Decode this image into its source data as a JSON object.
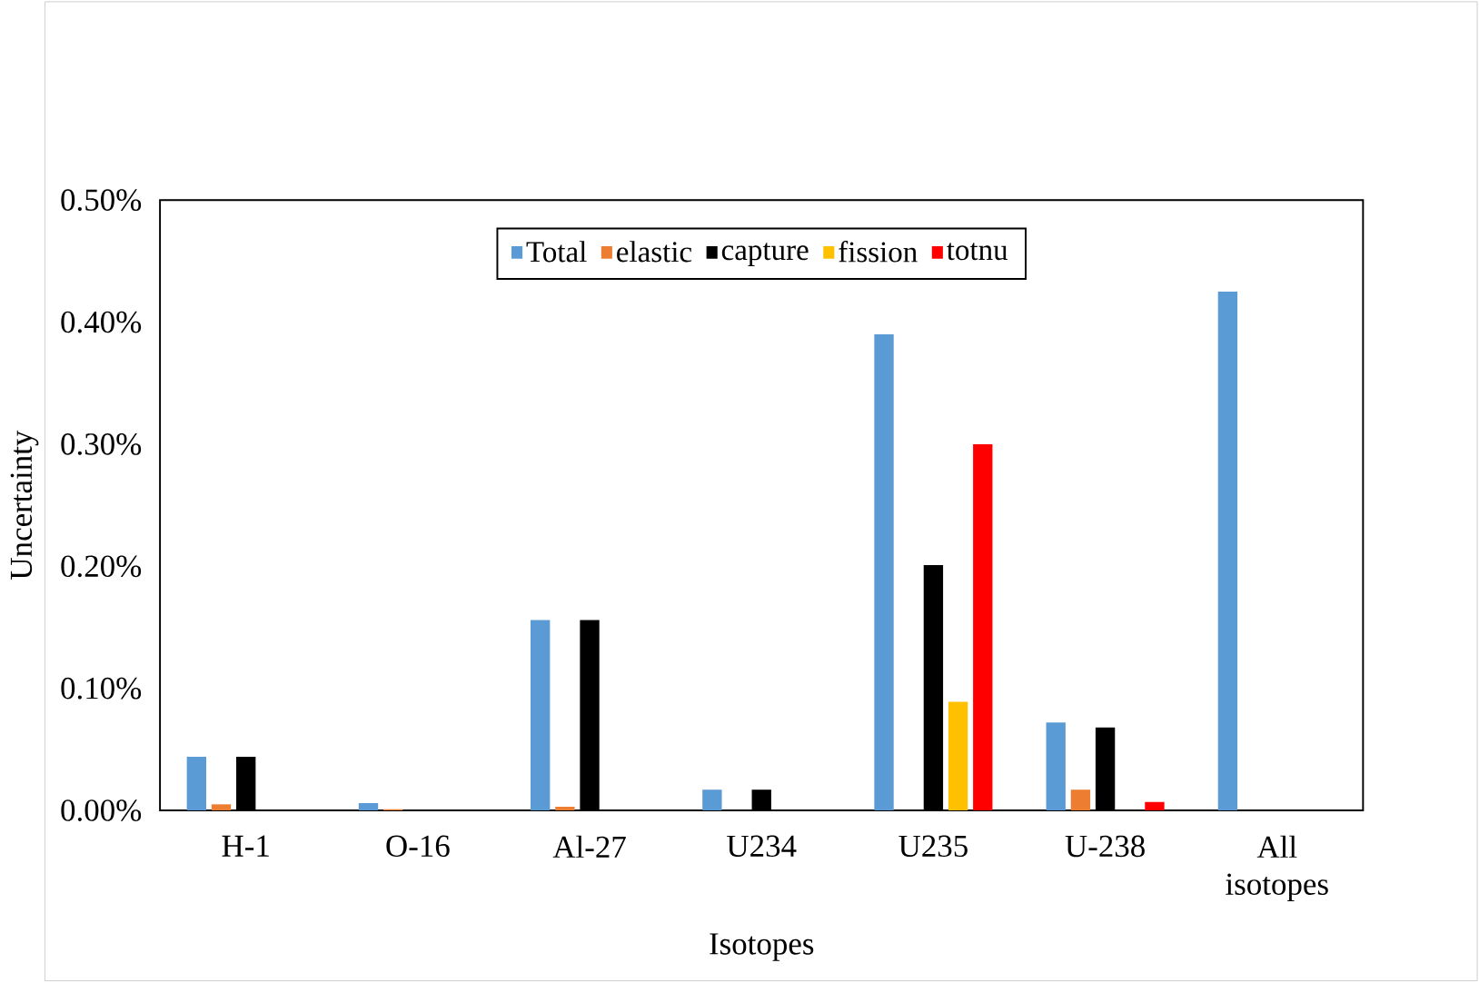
{
  "chart_data": {
    "type": "bar",
    "xlabel": "Isotopes",
    "ylabel": "Uncertainty",
    "categories": [
      "H-1",
      "O-16",
      "Al-27",
      "U234",
      "U235",
      "U-238",
      "All isotopes"
    ],
    "series": [
      {
        "name": "Total",
        "color": "#5b9bd5",
        "values": [
          0.044,
          0.006,
          0.156,
          0.017,
          0.39,
          0.072,
          0.425
        ]
      },
      {
        "name": "elastic",
        "color": "#ed7d31",
        "values": [
          0.005,
          0.001,
          0.003,
          null,
          null,
          0.017,
          null
        ]
      },
      {
        "name": "capture",
        "color": "#000000",
        "values": [
          0.044,
          null,
          0.156,
          0.017,
          0.201,
          0.068,
          null
        ]
      },
      {
        "name": "fission",
        "color": "#ffc000",
        "values": [
          null,
          null,
          null,
          null,
          0.089,
          null,
          null
        ]
      },
      {
        "name": "totnu",
        "color": "#ff0000",
        "values": [
          null,
          null,
          null,
          null,
          0.3,
          0.007,
          null
        ]
      }
    ],
    "ylim": [
      0,
      0.5
    ],
    "yticks": [
      {
        "value": 0,
        "label": "0.00%"
      },
      {
        "value": 0.1,
        "label": "0.10%"
      },
      {
        "value": 0.2,
        "label": "0.20%"
      },
      {
        "value": 0.3,
        "label": "0.30%"
      },
      {
        "value": 0.4,
        "label": "0.40%"
      },
      {
        "value": 0.5,
        "label": "0.50%"
      }
    ],
    "legend": "top",
    "grid": false
  }
}
